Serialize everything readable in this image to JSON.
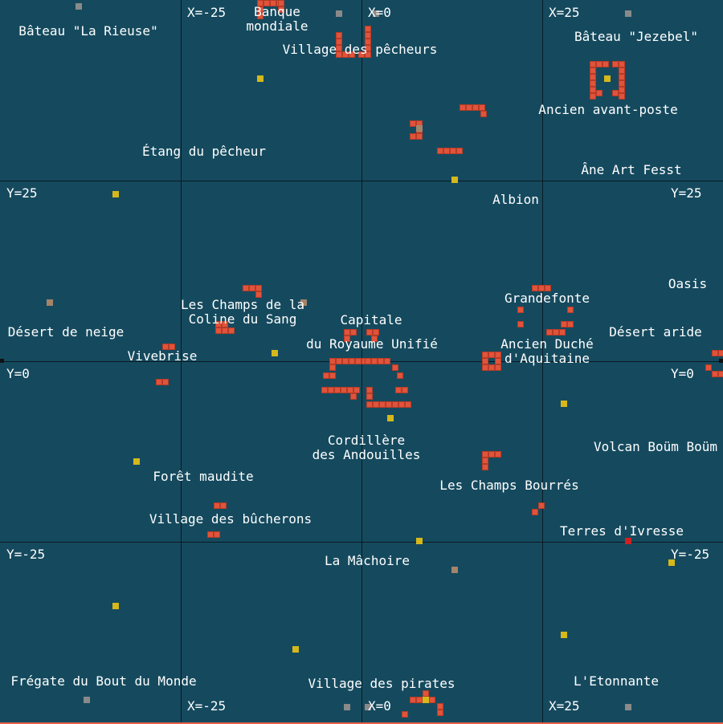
{
  "colors": {
    "background": "#154a5e",
    "grid": "#0a1a22",
    "building": "#e0543b",
    "marker_gray": "#8a8a8a",
    "marker_yellow": "#d6b81b",
    "marker_tan": "#a5846a",
    "marker_red": "#d02020",
    "text": "#ffffff"
  },
  "coordinate_labels": {
    "x_top": [
      "X=-25",
      "X=0",
      "X=25"
    ],
    "x_bottom": [
      "X=-25",
      "X=0",
      "X=25"
    ],
    "y_left": [
      "Y=25",
      "Y=0",
      "Y=-25"
    ],
    "y_right": [
      "Y=25",
      "Y=0",
      "Y=-25"
    ]
  },
  "places": [
    "Bâteau \"La Rieuse\"",
    "Banque\nmondiale",
    "Village des pêcheurs",
    "Bâteau \"Jezebel\"",
    "Ancien avant-poste",
    "Étang du pêcheur",
    "Âne Art Fesst",
    "Albion",
    "Oasis",
    "Grandefonte",
    "Les Champs de la\nColine du Sang",
    "Capitale",
    "du Royaume Unifié",
    "Ancien Duché\nd'Aquitaine",
    "Désert de neige",
    "Désert aride",
    "Vivebrise",
    "Cordillère\ndes Andouilles",
    "Volcan Boüm Boüm",
    "Forêt maudite",
    "Les Champs Bourrés",
    "Village des bûcherons",
    "Terres d'Ivresse",
    "La Mâchoire",
    "Frégate du Bout du Monde",
    "Village des pirates",
    "L'Etonnante"
  ]
}
